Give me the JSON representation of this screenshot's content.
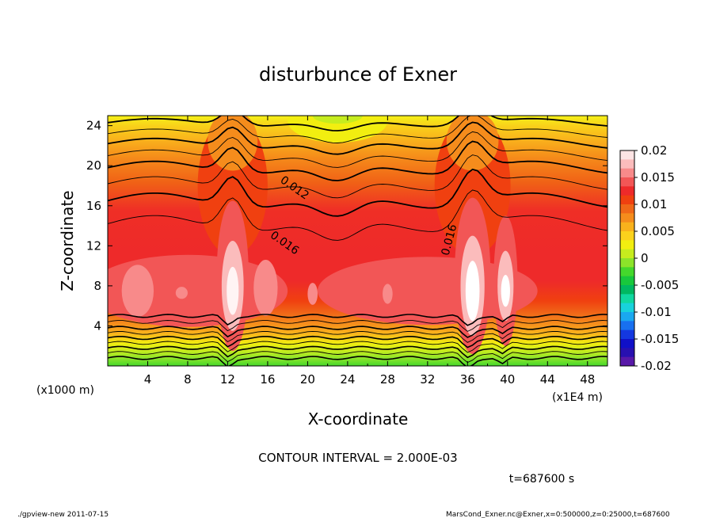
{
  "chart_data": {
    "type": "heatmap",
    "subtype": "filled contour",
    "title": "disturbunce of Exner",
    "xlabel": "X-coordinate",
    "ylabel": "Z-coordinate",
    "x_units_left": "(x1000 m)",
    "x_units_right": "(x1E4 m)",
    "xlim": [
      0,
      50
    ],
    "ylim": [
      0,
      25
    ],
    "xticks": [
      "4",
      "8",
      "12",
      "16",
      "20",
      "24",
      "28",
      "32",
      "36",
      "40",
      "44",
      "48"
    ],
    "xtick_values": [
      4,
      8,
      12,
      16,
      20,
      24,
      28,
      32,
      36,
      40,
      44,
      48
    ],
    "yticks": [
      "4",
      "8",
      "12",
      "16",
      "20",
      "24"
    ],
    "ytick_values": [
      4,
      8,
      12,
      16,
      20,
      24
    ],
    "colorbar": {
      "labels": [
        "0.02",
        "0.015",
        "0.01",
        "0.005",
        "0",
        "-0.005",
        "-0.01",
        "-0.015",
        "-0.02"
      ],
      "levels": [
        0.02,
        0.015,
        0.01,
        0.005,
        0,
        -0.005,
        -0.01,
        -0.015,
        -0.02
      ],
      "colors_top_to_bottom": [
        "#fde4e4",
        "#fbbcbc",
        "#f88a8a",
        "#f25656",
        "#ee2a2a",
        "#f04010",
        "#f06818",
        "#f58c1c",
        "#f9b21c",
        "#fbd21c",
        "#f2ee10",
        "#c6ec1e",
        "#8ce42a",
        "#44d82c",
        "#18c83c",
        "#00b860",
        "#10d8a0",
        "#18d2dc",
        "#1aa8f0",
        "#1870f0",
        "#1438e0",
        "#1010c8",
        "#2810b0",
        "#5818a8"
      ]
    },
    "contour_labels": [
      {
        "text": "0.012",
        "x": 18.5,
        "z": 17.5
      },
      {
        "text": "0.016",
        "x": 17.5,
        "z": 12.0
      },
      {
        "text": "0.016",
        "x": 34.5,
        "z": 12.5
      }
    ],
    "contour_interval_text": "CONTOUR INTERVAL = 2.000E-03",
    "time_text": "t=687600 s",
    "footer_left": "./gpview-new   2011-07-15",
    "footer_right": "MarsCond_Exner.nc@Exner,x=0:500000,z=0:25000,t=687600"
  }
}
